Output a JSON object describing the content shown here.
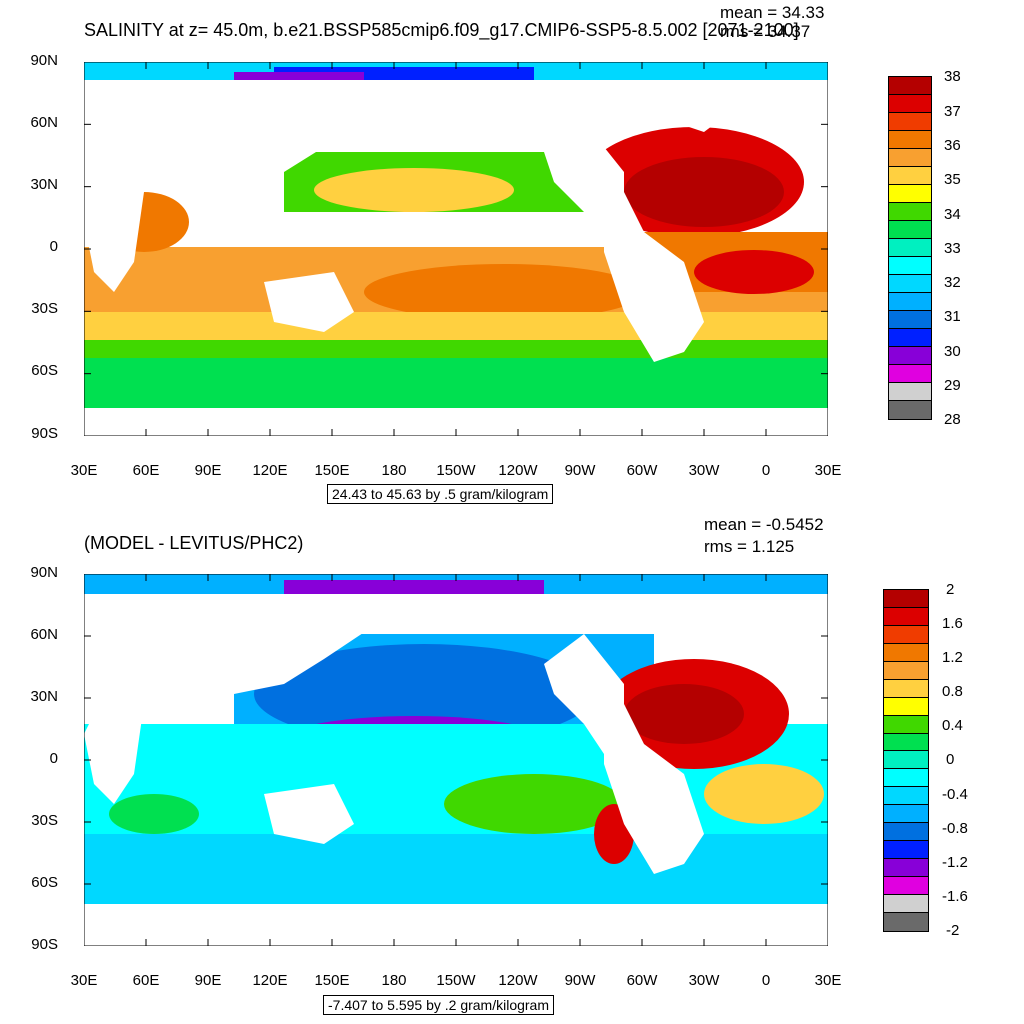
{
  "top_panel": {
    "title": "SALINITY at z=  45.0m, b.e21.BSSP585cmip6.f09_g17.CMIP6-SSP5-8.5.002 [2071-2100]",
    "mean_text": "mean = 34.33",
    "rms_text": "rms = 34.37",
    "range_text": "24.43 to 45.63 by .5 gram/kilogram",
    "legend_labels": [
      "38",
      "37",
      "36",
      "35",
      "34",
      "33",
      "32",
      "31",
      "30",
      "29",
      "28"
    ],
    "legend_colors": [
      "#b40000",
      "#dc0000",
      "#f03c00",
      "#f07800",
      "#f8a030",
      "#ffd040",
      "#ffff00",
      "#40d800",
      "#00e050",
      "#00f0c0",
      "#00ffff",
      "#00d8ff",
      "#00b0ff",
      "#0070e0",
      "#0020ff",
      "#8800d8",
      "#e000e0",
      "#d0d0d0",
      "#6a6a6a"
    ]
  },
  "bottom_panel": {
    "title": "(MODEL - LEVITUS/PHC2)",
    "mean_text": "mean = -0.5452",
    "rms_text": "rms = 1.125",
    "range_text": "-7.407 to 5.595 by .2 gram/kilogram",
    "legend_labels": [
      "2",
      "1.6",
      "1.2",
      "0.8",
      "0.4",
      "0",
      "-0.4",
      "-0.8",
      "-1.2",
      "-1.6",
      "-2"
    ],
    "legend_colors": [
      "#b40000",
      "#dc0000",
      "#f03c00",
      "#f07800",
      "#f8a030",
      "#ffd040",
      "#ffff00",
      "#40d800",
      "#00e050",
      "#00f0c0",
      "#00ffff",
      "#00d8ff",
      "#00b0ff",
      "#0070e0",
      "#0020ff",
      "#8800d8",
      "#e000e0",
      "#d0d0d0",
      "#6a6a6a"
    ]
  },
  "axes": {
    "lat_labels": [
      "90N",
      "60N",
      "30N",
      "0",
      "30S",
      "60S",
      "90S"
    ],
    "lon_labels": [
      "30E",
      "60E",
      "90E",
      "120E",
      "150E",
      "180",
      "150W",
      "120W",
      "90W",
      "60W",
      "30W",
      "0",
      "30E"
    ]
  }
}
